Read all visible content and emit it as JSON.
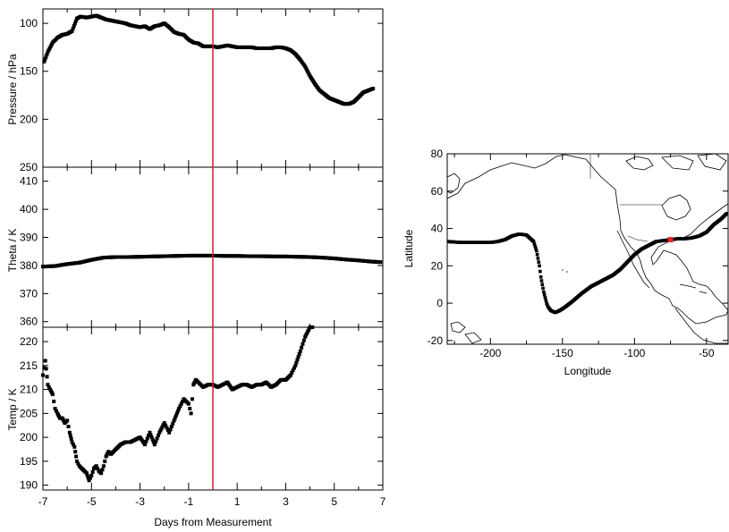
{
  "chart_data": [
    {
      "type": "line",
      "panel": "pressure",
      "ylabel": "Pressure / hPa",
      "ylim": [
        250,
        85
      ],
      "yticks": [
        100,
        150,
        200,
        250
      ],
      "xlim": [
        -7,
        7
      ],
      "marker_color": "#000000",
      "series": [
        {
          "x": [
            -6.95,
            -6.8,
            -6.6,
            -6.4,
            -6.2,
            -6.0,
            -5.8,
            -5.6,
            -5.45,
            -5.2,
            -5.0,
            -4.8,
            -4.6,
            -4.4,
            -4.2,
            -4.0,
            -3.8,
            -3.6,
            -3.4,
            -3.2,
            -3.0,
            -2.8,
            -2.6,
            -2.4,
            -2.2,
            -2.0,
            -1.8,
            -1.6,
            -1.4,
            -1.2,
            -1.0,
            -0.8,
            -0.6,
            -0.4,
            -0.2,
            0.0,
            0.2,
            0.4,
            0.6,
            0.8,
            1.0,
            1.2,
            1.4,
            1.6,
            1.8,
            2.0,
            2.2,
            2.4,
            2.6,
            2.8,
            3.0,
            3.2,
            3.4,
            3.6,
            3.8,
            4.0,
            4.2,
            4.4,
            4.6,
            4.8,
            5.0,
            5.2,
            5.4,
            5.6,
            5.8,
            6.0,
            6.2,
            6.4,
            6.6
          ],
          "y": [
            140,
            130,
            120,
            115,
            112,
            111,
            108,
            95,
            93,
            94,
            93,
            92,
            94,
            96,
            97,
            98,
            99,
            100,
            102,
            103,
            104,
            103,
            106,
            103,
            102,
            100,
            104,
            109,
            111,
            112,
            117,
            120,
            121,
            124,
            124,
            124,
            125,
            124,
            123,
            124,
            125,
            125,
            125,
            125,
            126,
            126,
            126,
            126,
            125,
            125,
            126,
            128,
            132,
            138,
            145,
            155,
            163,
            170,
            174,
            178,
            180,
            182,
            184,
            184,
            182,
            177,
            172,
            170,
            168
          ]
        }
      ]
    },
    {
      "type": "line",
      "panel": "theta",
      "ylabel": "Theta / K",
      "ylim": [
        358,
        415
      ],
      "yticks": [
        360,
        370,
        380,
        390,
        400,
        410
      ],
      "xlim": [
        -7,
        7
      ],
      "marker_color": "#000000",
      "series": [
        {
          "x": [
            -7.0,
            -6.5,
            -6.0,
            -5.5,
            -5.0,
            -4.5,
            -4.0,
            -3.5,
            -3.0,
            -2.5,
            -2.0,
            -1.5,
            -1.0,
            -0.5,
            0.0,
            0.5,
            1.0,
            1.5,
            2.0,
            2.5,
            3.0,
            3.5,
            4.0,
            4.5,
            5.0,
            5.5,
            6.0,
            6.5,
            6.9
          ],
          "y": [
            379.6,
            379.8,
            380.5,
            381.0,
            382.0,
            382.8,
            383.0,
            383.0,
            383.1,
            383.2,
            383.3,
            383.4,
            383.5,
            383.5,
            383.5,
            383.4,
            383.4,
            383.3,
            383.3,
            383.2,
            383.2,
            383.1,
            383.0,
            382.8,
            382.5,
            382.1,
            381.8,
            381.4,
            381.2
          ]
        }
      ]
    },
    {
      "type": "line",
      "panel": "temperature",
      "ylabel": "Temp / K",
      "xlabel": "Days from Measurement",
      "ylim": [
        189,
        223
      ],
      "yticks": [
        190,
        195,
        200,
        205,
        210,
        215,
        220
      ],
      "xlim": [
        -7,
        7
      ],
      "xticks": [
        -7,
        -5,
        -3,
        -1,
        1,
        3,
        5,
        7
      ],
      "marker_color": "#000000",
      "series": [
        {
          "x": [
            -7.0,
            -6.9,
            -6.8,
            -6.7,
            -6.6,
            -6.5,
            -6.4,
            -6.3,
            -6.2,
            -6.1,
            -6.0,
            -5.9,
            -5.8,
            -5.7,
            -5.6,
            -5.5,
            -5.4,
            -5.3,
            -5.2,
            -5.1,
            -5.0,
            -4.9,
            -4.8,
            -4.7,
            -4.6,
            -4.5,
            -4.4,
            -4.3,
            -4.2,
            -4.1,
            -4.0,
            -3.8,
            -3.6,
            -3.4,
            -3.2,
            -3.0,
            -2.8,
            -2.6,
            -2.4,
            -2.2,
            -2.0,
            -1.8,
            -1.6,
            -1.4,
            -1.2,
            -1.0,
            -0.9,
            -0.8,
            -0.7,
            -0.6,
            -0.5,
            -0.4,
            -0.2,
            0.0,
            0.2,
            0.4,
            0.6,
            0.8,
            1.0,
            1.2,
            1.4,
            1.6,
            1.8,
            2.0,
            2.2,
            2.4,
            2.6,
            2.8,
            3.0,
            3.2,
            3.4,
            3.6,
            3.8,
            4.0,
            4.1
          ],
          "y": [
            213,
            216,
            211,
            210,
            209,
            206,
            205,
            204,
            204,
            203,
            203.5,
            201,
            199,
            198,
            195,
            194,
            193.5,
            193,
            192.5,
            191,
            192,
            193.5,
            194,
            193,
            192.5,
            194,
            196,
            197,
            196.5,
            197,
            197.5,
            198.5,
            199,
            199,
            199.5,
            200,
            198.5,
            201,
            198.5,
            201,
            203,
            201,
            203.5,
            206,
            208,
            207,
            205,
            211,
            212,
            211.5,
            211,
            210.5,
            211,
            211,
            210.5,
            211,
            211.5,
            210,
            210.5,
            211,
            211,
            210.5,
            211,
            211,
            211.5,
            210.5,
            211,
            212,
            212,
            213,
            215,
            218,
            221,
            223,
            223
          ]
        }
      ]
    },
    {
      "type": "scatter",
      "panel": "map",
      "xlabel": "Longitude",
      "ylabel": "Latitude",
      "xlim": [
        -230,
        -35
      ],
      "ylim": [
        -22,
        80
      ],
      "xticks": [
        -200,
        -150,
        -100,
        -50
      ],
      "yticks": [
        -20,
        0,
        20,
        40,
        60,
        80
      ],
      "marker_color": "#000000",
      "highlight_color": "#e8262a",
      "highlight_point": {
        "lon": -75,
        "lat": 34
      },
      "series": [
        {
          "lon": [
            -230,
            -220,
            -210,
            -200,
            -195,
            -190,
            -185,
            -180,
            -175,
            -170,
            -168,
            -166,
            -165,
            -164,
            -163,
            -162,
            -161,
            -160,
            -158,
            -155,
            -152,
            -148,
            -143,
            -137,
            -130,
            -125,
            -120,
            -115,
            -110,
            -105,
            -100,
            -95,
            -90,
            -85,
            -80,
            -75,
            -70,
            -65,
            -60,
            -55,
            -50,
            -45,
            -40,
            -36
          ],
          "lat": [
            33,
            32.5,
            32.5,
            32.5,
            33,
            34,
            36,
            37,
            36.5,
            33,
            28,
            20,
            14,
            10,
            6,
            3,
            0,
            -2,
            -4,
            -5,
            -4,
            -2,
            1,
            5,
            9,
            11,
            13,
            15,
            18,
            22,
            26,
            29,
            31,
            33,
            33.5,
            34,
            34.5,
            34.5,
            35,
            36,
            38,
            42,
            45,
            48
          ]
        }
      ]
    }
  ]
}
